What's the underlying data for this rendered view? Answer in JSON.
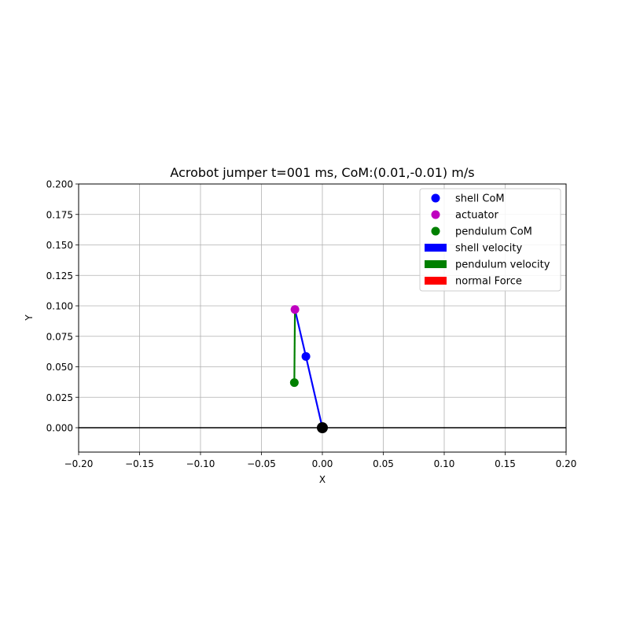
{
  "chart_data": {
    "type": "scatter",
    "title": "Acrobot jumper t=001 ms, CoM:(0.01,-0.01) m/s",
    "xlabel": "X",
    "ylabel": "Y",
    "xlim": [
      -0.2,
      0.2
    ],
    "ylim": [
      -0.02,
      0.2
    ],
    "grid": true,
    "legend_position": "upper-right",
    "x_ticks": [
      -0.2,
      -0.15,
      -0.1,
      -0.05,
      0.0,
      0.05,
      0.1,
      0.15,
      0.2
    ],
    "x_tick_labels": [
      "−0.20",
      "−0.15",
      "−0.10",
      "−0.05",
      "0.00",
      "0.05",
      "0.10",
      "0.15",
      "0.20"
    ],
    "y_ticks": [
      0.0,
      0.025,
      0.05,
      0.075,
      0.1,
      0.125,
      0.15,
      0.175,
      0.2
    ],
    "y_tick_labels": [
      "0.000",
      "0.025",
      "0.050",
      "0.075",
      "0.100",
      "0.125",
      "0.150",
      "0.175",
      "0.200"
    ],
    "ground": {
      "y": 0.0,
      "color": "#000000"
    },
    "contact_point": {
      "x": 0.0,
      "y": 0.0,
      "color": "#000000"
    },
    "links": [
      {
        "name": "shell",
        "color": "#0000ff",
        "points": [
          [
            0.0,
            0.0
          ],
          [
            -0.0135,
            0.0585
          ],
          [
            -0.0225,
            0.097
          ]
        ]
      },
      {
        "name": "pendulum",
        "color": "#008000",
        "points": [
          [
            -0.0225,
            0.097
          ],
          [
            -0.023,
            0.037
          ]
        ]
      }
    ],
    "series": [
      {
        "name": "shell CoM",
        "kind": "point",
        "color": "#0000ff",
        "x": [
          -0.0135
        ],
        "y": [
          0.0585
        ]
      },
      {
        "name": "actuator",
        "kind": "point",
        "color": "#bf00bf",
        "x": [
          -0.0225
        ],
        "y": [
          0.097
        ]
      },
      {
        "name": "pendulum CoM",
        "kind": "point",
        "color": "#008000",
        "x": [
          -0.023
        ],
        "y": [
          0.037
        ]
      },
      {
        "name": "shell velocity",
        "kind": "arrow",
        "color": "#0000ff"
      },
      {
        "name": "pendulum velocity",
        "kind": "arrow",
        "color": "#008000"
      },
      {
        "name": "normal Force",
        "kind": "arrow",
        "color": "#ff0000"
      }
    ]
  }
}
